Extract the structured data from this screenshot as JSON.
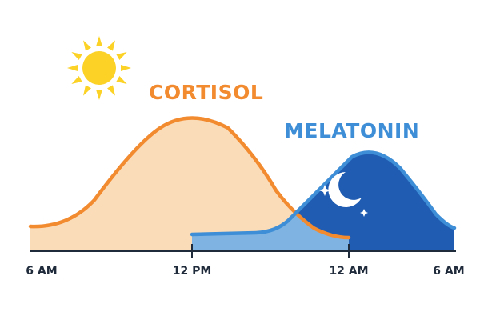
{
  "labels": {
    "cortisol": "CORTISOL",
    "melatonin": "MELATONIN"
  },
  "time_axis": [
    "6 AM",
    "12 PM",
    "12 AM",
    "6 AM"
  ],
  "icons": {
    "day": "sun-icon",
    "night": "crescent-moon-icon",
    "stars": "star-icon"
  },
  "colors": {
    "cortisol_line": "#f28a30",
    "cortisol_fill": "#fbdcb9",
    "melatonin_line": "#3d8ed6",
    "melatonin_fill_light": "#7fb3e2",
    "melatonin_fill_dark": "#1f5cb2",
    "sun": "#fbd225",
    "axis": "#1f2a3a"
  }
}
